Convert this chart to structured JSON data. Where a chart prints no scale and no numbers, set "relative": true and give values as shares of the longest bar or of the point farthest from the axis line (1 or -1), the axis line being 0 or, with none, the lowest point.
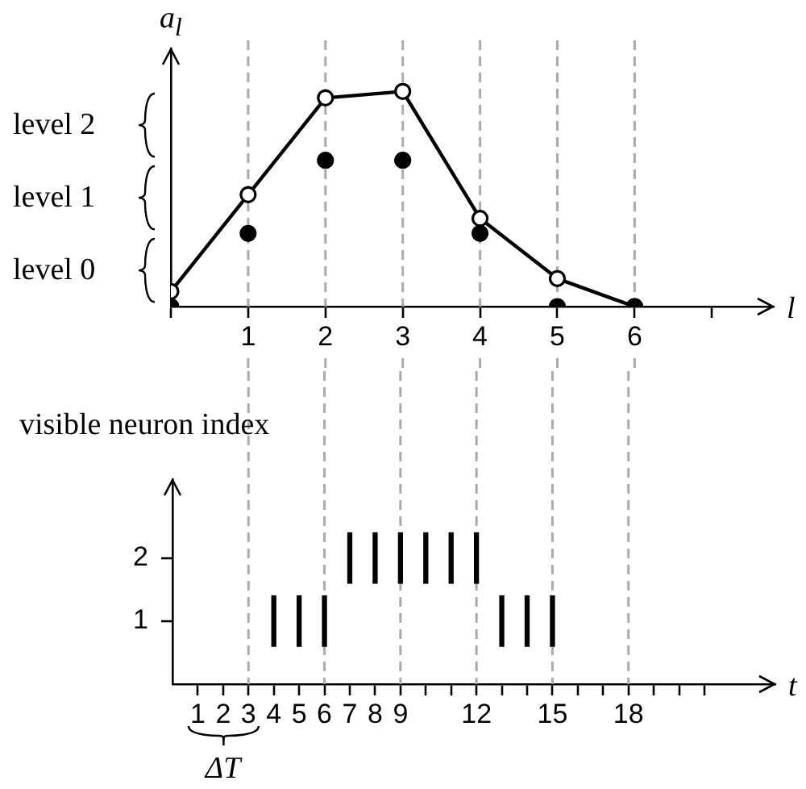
{
  "chart_data": [
    {
      "type": "line",
      "xlabel": "l",
      "ylabel": "a$_{l}$",
      "relative": true,
      "tick_labels": "x",
      "grid": false,
      "legend": false,
      "x": [
        0,
        1,
        2,
        3,
        4,
        5,
        6
      ],
      "xlim": [
        0,
        7.8
      ],
      "xticks": [
        {
          "value": 0,
          "label": null
        },
        1,
        2,
        3,
        4,
        5,
        6,
        {
          "value": 7,
          "label": null
        }
      ],
      "series": [
        {
          "type": "line",
          "color": "#000000",
          "marker": "circle",
          "values": [
            0.07,
            0.52,
            0.97,
            1,
            0.41,
            0.13,
            0
          ]
        },
        {
          "type": "scatter",
          "color": "#000000",
          "marker": "circle",
          "values": [
            0,
            0.34,
            0.68,
            0.68,
            0.34,
            0,
            0
          ]
        }
      ],
      "ref_lines": [
        {
          "axis": "x",
          "value": 1,
          "color": "#aaaaaa",
          "line_style": "dashed"
        },
        {
          "axis": "x",
          "value": 2,
          "color": "#aaaaaa",
          "line_style": "dashed"
        },
        {
          "axis": "x",
          "value": 3,
          "color": "#aaaaaa",
          "line_style": "dashed"
        },
        {
          "axis": "x",
          "value": 4,
          "color": "#aaaaaa",
          "line_style": "dashed"
        },
        {
          "axis": "x",
          "value": 5,
          "color": "#aaaaaa",
          "line_style": "dashed"
        },
        {
          "axis": "x",
          "value": 6,
          "color": "#aaaaaa",
          "line_style": "dashed"
        }
      ],
      "annotations": [
        "level 2",
        "level 1",
        "level 0"
      ]
    },
    {
      "type": "bar",
      "xlabel": "t",
      "ylabel": "visible neuron index",
      "grid": false,
      "legend": false,
      "xlim": [
        0,
        23.8
      ],
      "ylim": [
        0,
        3.25
      ],
      "yticks": [
        1,
        2
      ],
      "xticks": [
        1,
        2,
        3,
        4,
        5,
        6,
        7,
        8,
        9,
        {
          "value": 10,
          "label": null
        },
        {
          "value": 11,
          "label": null
        },
        12,
        {
          "value": 13,
          "label": null
        },
        {
          "value": 14,
          "label": null
        },
        15,
        {
          "value": 16,
          "label": null
        },
        {
          "value": 17,
          "label": null
        },
        18,
        {
          "value": 19,
          "label": null
        },
        {
          "value": 20,
          "label": null
        },
        {
          "value": 21,
          "label": null
        }
      ],
      "series": [
        {
          "color": "#000000",
          "x": [
            4,
            5,
            6,
            7,
            8,
            9,
            10,
            11,
            12,
            13,
            14,
            15
          ],
          "base": [
            0.6,
            0.6,
            0.6,
            1.6,
            1.6,
            1.6,
            1.6,
            1.6,
            1.6,
            0.6,
            0.6,
            0.6
          ],
          "values": [
            0.8,
            0.8,
            0.8,
            0.8,
            0.8,
            0.8,
            0.8,
            0.8,
            0.8,
            0.8,
            0.8,
            0.8
          ]
        }
      ],
      "ref_lines": [
        {
          "axis": "x",
          "value": 3,
          "color": "#aaaaaa",
          "line_style": "dashed"
        },
        {
          "axis": "x",
          "value": 6,
          "color": "#aaaaaa",
          "line_style": "dashed"
        },
        {
          "axis": "x",
          "value": 9,
          "color": "#aaaaaa",
          "line_style": "dashed"
        },
        {
          "axis": "x",
          "value": 12,
          "color": "#aaaaaa",
          "line_style": "dashed"
        },
        {
          "axis": "x",
          "value": 15,
          "color": "#aaaaaa",
          "line_style": "dashed"
        },
        {
          "axis": "x",
          "value": 18,
          "color": "#aaaaaa",
          "line_style": "dashed"
        }
      ],
      "annotations": [
        "ΔT"
      ]
    }
  ]
}
